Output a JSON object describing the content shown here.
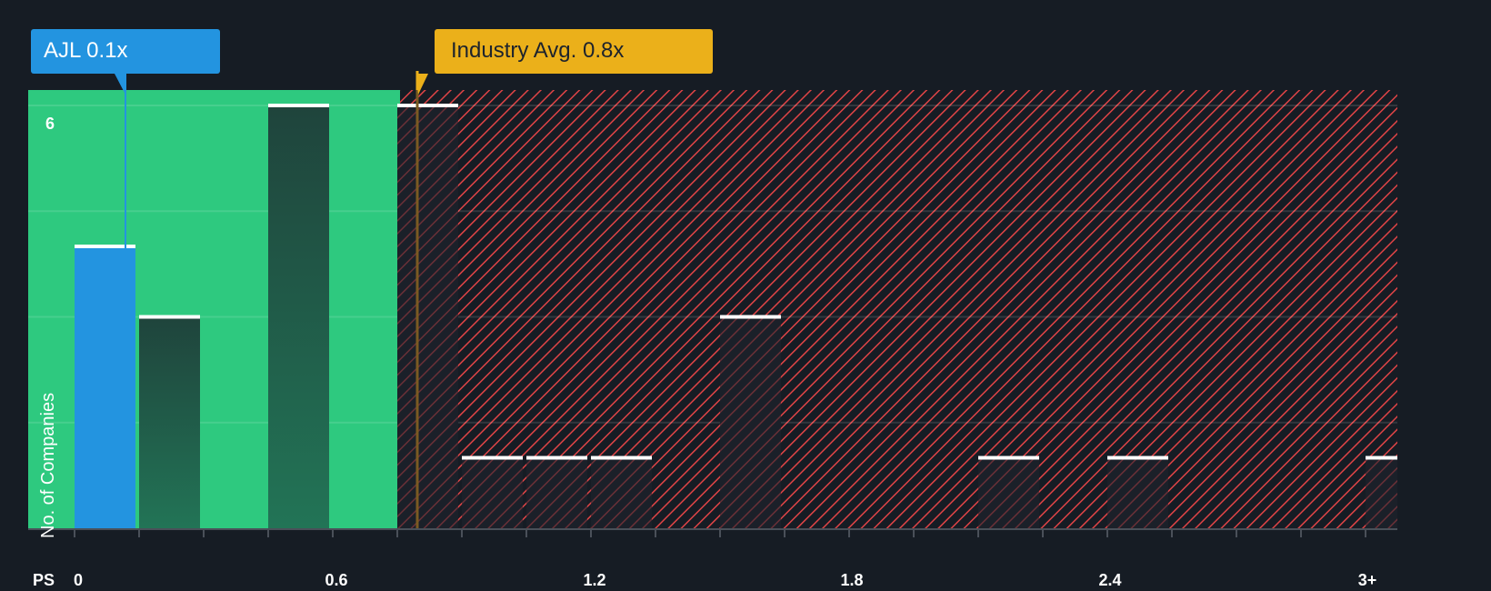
{
  "chart_data": {
    "type": "bar",
    "title": "",
    "xlabel": "PS",
    "ylabel": "No. of Companies",
    "x_tick_labels": [
      "0",
      "0.6",
      "1.2",
      "1.8",
      "2.4",
      "3+"
    ],
    "y_tick_labels": [
      "6"
    ],
    "ylim": [
      0,
      6.2
    ],
    "grid": true,
    "bin_width": 0.15,
    "categories": [
      "0.0-0.15",
      "0.15-0.3",
      "0.3-0.45",
      "0.45-0.6",
      "0.6-0.75",
      "0.75-0.9",
      "0.9-1.05",
      "1.05-1.2",
      "1.2-1.35",
      "1.35-1.5",
      "1.5-1.65",
      "1.65-1.8",
      "1.8-1.95",
      "1.95-2.1",
      "2.1-2.25",
      "2.25-2.4",
      "2.4-2.55",
      "2.55-2.7",
      "2.7-2.85",
      "2.85-3.0",
      "3+"
    ],
    "values": [
      4,
      3,
      0,
      6,
      0,
      6,
      1,
      1,
      1,
      0,
      3,
      0,
      0,
      0,
      1,
      0,
      1,
      0,
      0,
      0,
      1
    ],
    "highlight": {
      "label": "AJL",
      "value": 0.1,
      "bin_index": 0,
      "color": "#2394e0"
    },
    "industry_avg": {
      "label": "Industry Avg.",
      "value": 0.8,
      "color": "#ebb01a"
    },
    "regions": [
      {
        "name": "undervalued",
        "from": 0,
        "to": 0.75,
        "color": "#2ec97f"
      },
      {
        "name": "overvalued",
        "from": 0.75,
        "to": 3.2,
        "color": "#e04446",
        "pattern": "diagonal-hatch"
      }
    ],
    "annotations": [
      "AJL 0.1x",
      "Industry Avg. 0.8x"
    ]
  },
  "callouts": {
    "company": "AJL 0.1x",
    "industry": "Industry Avg. 0.8x"
  },
  "axis": {
    "x_title": "PS",
    "y_title": "No. of Companies",
    "y_top_tick": "6",
    "x_ticks": [
      "0",
      "0.6",
      "1.2",
      "1.8",
      "2.4",
      "3+"
    ]
  },
  "colors": {
    "background": "#161c24",
    "green": "#2ec97f",
    "blue": "#2394e0",
    "yellow": "#ebb01a",
    "red_hatch": "#e04446"
  }
}
